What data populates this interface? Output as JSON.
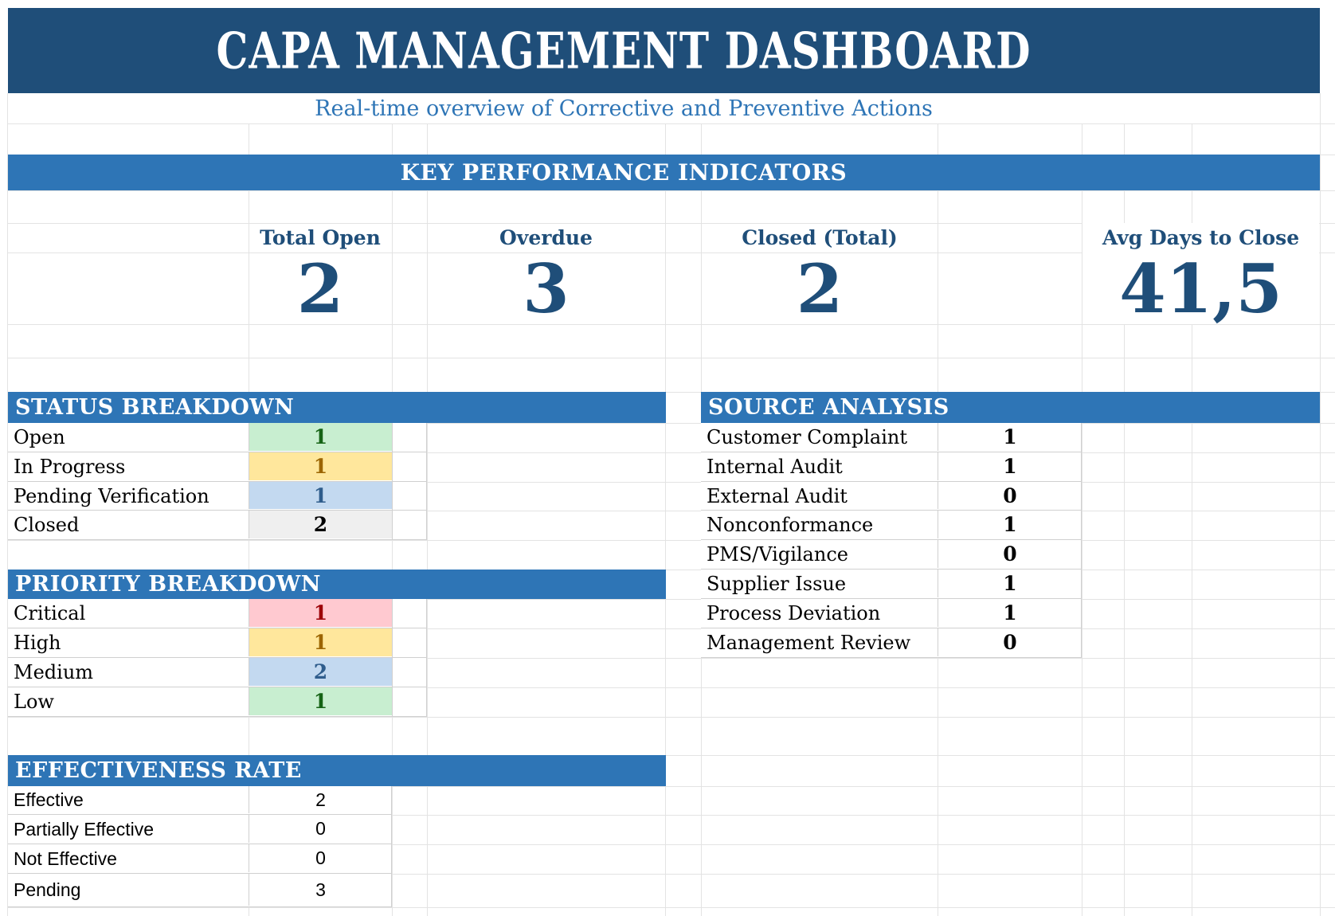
{
  "title": "CAPA MANAGEMENT DASHBOARD",
  "subtitle": "Real-time overview of Corrective and Preventive Actions",
  "kpi": {
    "section_title": "KEY PERFORMANCE INDICATORS",
    "items": [
      {
        "label": "Total Open",
        "value": "2"
      },
      {
        "label": "Overdue",
        "value": "3"
      },
      {
        "label": "Closed (Total)",
        "value": "2"
      },
      {
        "label": "Avg Days to Close",
        "value": "41,5"
      }
    ]
  },
  "status_breakdown": {
    "title": "STATUS BREAKDOWN",
    "rows": [
      {
        "label": "Open",
        "value": "1",
        "style": "good"
      },
      {
        "label": "In Progress",
        "value": "1",
        "style": "neutral"
      },
      {
        "label": "Pending Verification",
        "value": "1",
        "style": "info"
      },
      {
        "label": "Closed",
        "value": "2",
        "style": "muted"
      }
    ]
  },
  "source_analysis": {
    "title": "SOURCE ANALYSIS",
    "rows": [
      {
        "label": "Customer Complaint",
        "value": "1"
      },
      {
        "label": "Internal Audit",
        "value": "1"
      },
      {
        "label": "External Audit",
        "value": "0"
      },
      {
        "label": "Nonconformance",
        "value": "1"
      },
      {
        "label": "PMS/Vigilance",
        "value": "0"
      },
      {
        "label": "Supplier Issue",
        "value": "1"
      },
      {
        "label": "Process Deviation",
        "value": "1"
      },
      {
        "label": "Management Review",
        "value": "0"
      }
    ]
  },
  "priority_breakdown": {
    "title": "PRIORITY BREAKDOWN",
    "rows": [
      {
        "label": "Critical",
        "value": "1",
        "style": "bad"
      },
      {
        "label": "High",
        "value": "1",
        "style": "neutral"
      },
      {
        "label": "Medium",
        "value": "2",
        "style": "info"
      },
      {
        "label": "Low",
        "value": "1",
        "style": "good"
      }
    ]
  },
  "effectiveness_rate": {
    "title": "EFFECTIVENESS RATE",
    "rows": [
      {
        "label": "Effective",
        "value": "2"
      },
      {
        "label": "Partially Effective",
        "value": "0"
      },
      {
        "label": "Not Effective",
        "value": "0"
      },
      {
        "label": "Pending",
        "value": "3"
      }
    ]
  },
  "colors": {
    "banner_bg": "#1F4E79",
    "bar_bg": "#2E75B6",
    "subtitle_fg": "#2E75B6",
    "kpi_fg": "#1F4E79",
    "gridline": "#E3E3E3",
    "table_border": "#D0D0D0",
    "cell_styles": {
      "good": {
        "bg": "#C8EED0",
        "fg": "#156315"
      },
      "neutral": {
        "bg": "#FFE79C",
        "fg": "#9C6500"
      },
      "info": {
        "bg": "#C3D9F0",
        "fg": "#2F5D8C"
      },
      "muted": {
        "bg": "#EFEFEF",
        "fg": "#000000"
      },
      "bad": {
        "bg": "#FFC9D0",
        "fg": "#9C0006"
      }
    }
  }
}
